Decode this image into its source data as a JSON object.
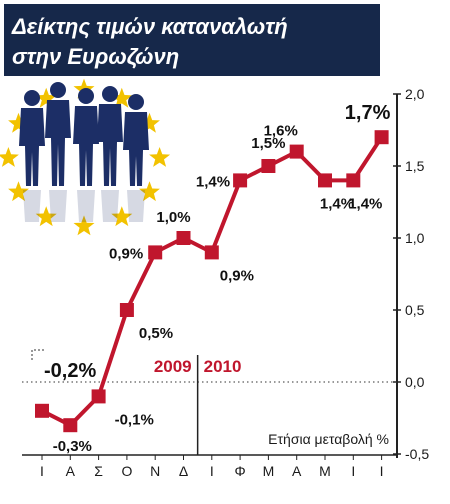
{
  "title": {
    "line1": "Δείκτης τιμών καταναλωτή",
    "line2": "στην Ευρωζώνη"
  },
  "colors": {
    "title_bg": "#16284a",
    "series": "#c0162d",
    "stars": "#f2c200",
    "people": "#1c2e66",
    "axis": "#222222"
  },
  "chart_data": {
    "type": "line",
    "title": "Δείκτης τιμών καταναλωτή στην Ευρωζώνη",
    "ylabel": "Ετήσια μεταβολή %",
    "x": [
      "Ι",
      "Α",
      "Σ",
      "Ο",
      "Ν",
      "Δ",
      "Ι",
      "Φ",
      "Μ",
      "Α",
      "Μ",
      "Ι",
      "Ι"
    ],
    "years": [
      "2009",
      "2010"
    ],
    "series": [
      {
        "values": [
          -0.2,
          -0.3,
          -0.1,
          0.5,
          0.9,
          1.0,
          0.9,
          1.4,
          1.5,
          1.6,
          1.4,
          1.4,
          1.7
        ]
      }
    ],
    "data_labels": [
      "-0,2%",
      "-0,3%",
      "-0,1%",
      "0,5%",
      "0,9%",
      "1,0%",
      "0,9%",
      "1,4%",
      "1,5%",
      "1,6%",
      "1,4%",
      "1,4%",
      "1,7%"
    ],
    "yticks": [
      "2,0",
      "1,5",
      "1,0",
      "0,5",
      "0,0",
      "-0,5"
    ],
    "ylim": [
      -0.5,
      2.0
    ],
    "grid": false
  }
}
